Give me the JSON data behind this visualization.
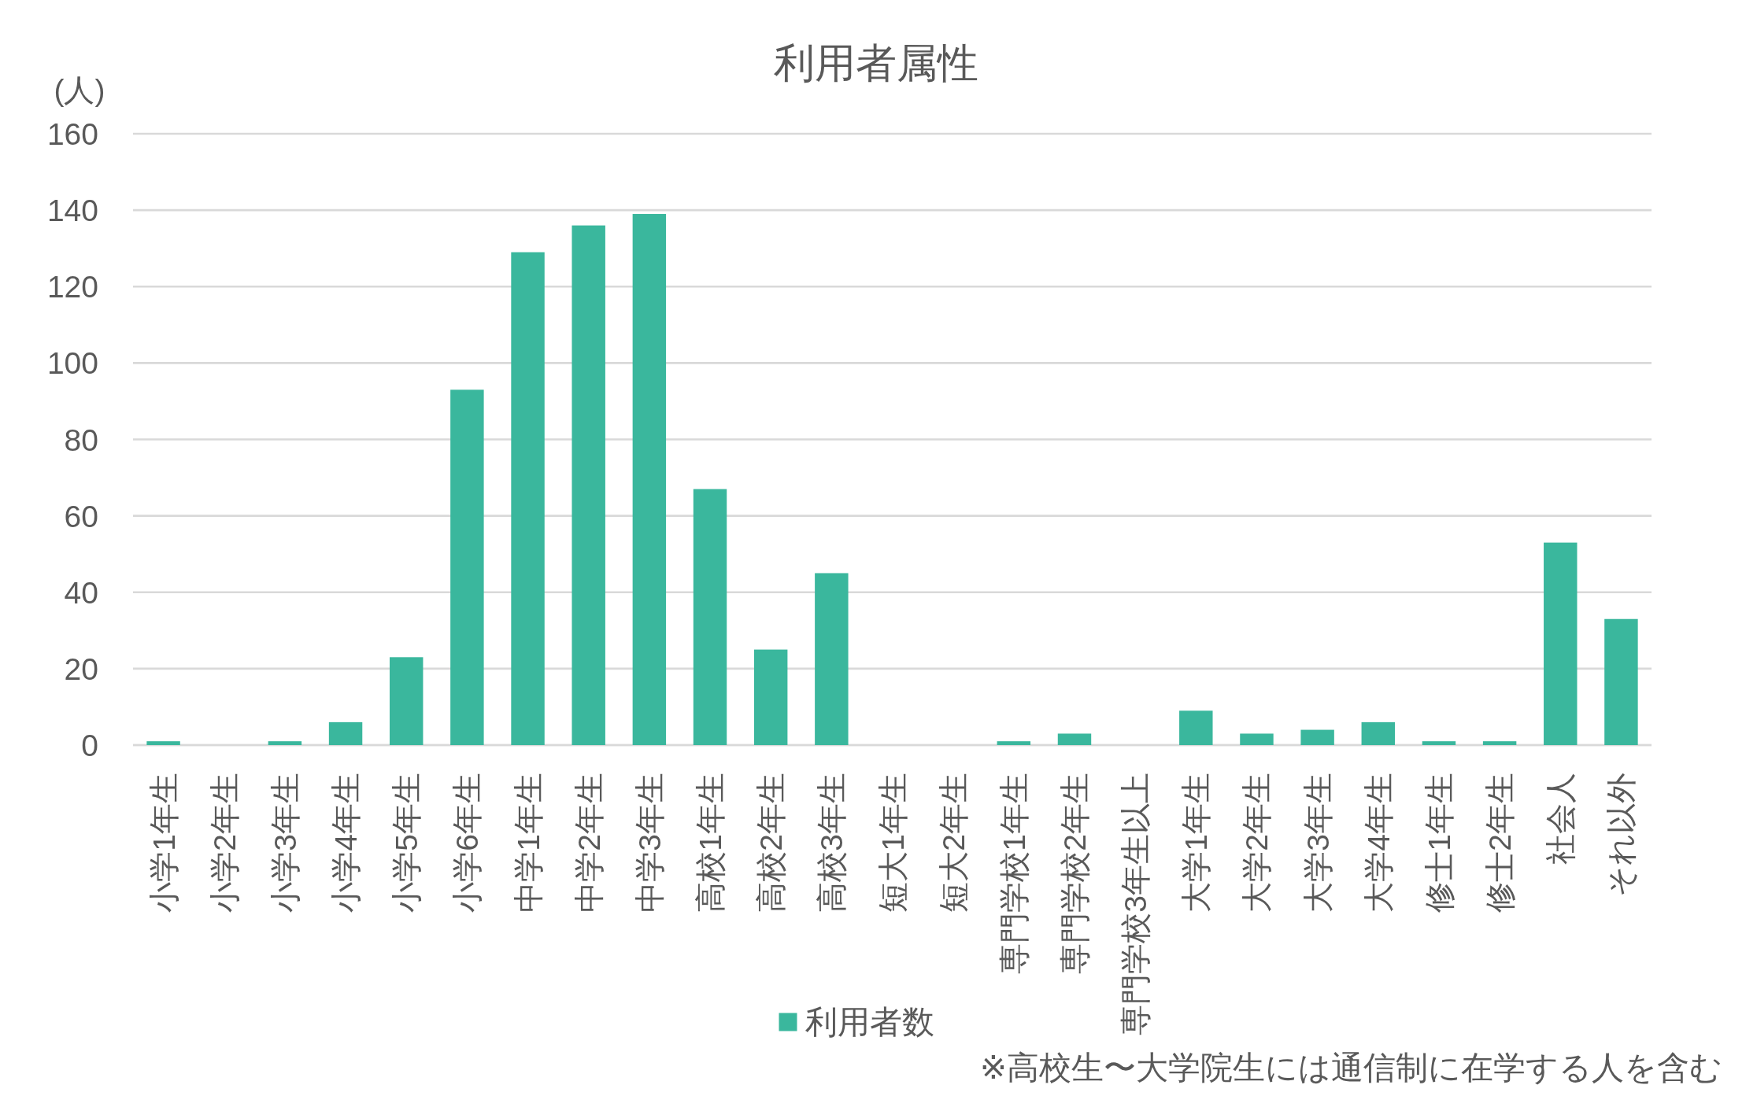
{
  "chart_data": {
    "type": "bar",
    "title": "利用者属性",
    "ylabel": "(人)",
    "categories": [
      "小学1年生",
      "小学2年生",
      "小学3年生",
      "小学4年生",
      "小学5年生",
      "小学6年生",
      "中学1年生",
      "中学2年生",
      "中学3年生",
      "高校1年生",
      "高校2年生",
      "高校3年生",
      "短大1年生",
      "短大2年生",
      "専門学校1年生",
      "専門学校2年生",
      "専門学校3年生以上",
      "大学1年生",
      "大学2年生",
      "大学3年生",
      "大学4年生",
      "修士1年生",
      "修士2年生",
      "社会人",
      "それ以外"
    ],
    "series": [
      {
        "name": "利用者数",
        "color": "#3ab79d",
        "values": [
          1,
          0,
          1,
          6,
          23,
          93,
          129,
          136,
          139,
          67,
          25,
          45,
          0,
          0,
          1,
          3,
          0,
          9,
          3,
          4,
          6,
          1,
          1,
          53,
          33
        ]
      }
    ],
    "ylim": [
      0,
      160
    ],
    "yticks": [
      0,
      20,
      40,
      60,
      80,
      100,
      120,
      140,
      160
    ],
    "grid": "y",
    "legend": "bottom",
    "annotations": [
      "※高校生〜大学院生には通信制に在学する人を含む"
    ]
  }
}
